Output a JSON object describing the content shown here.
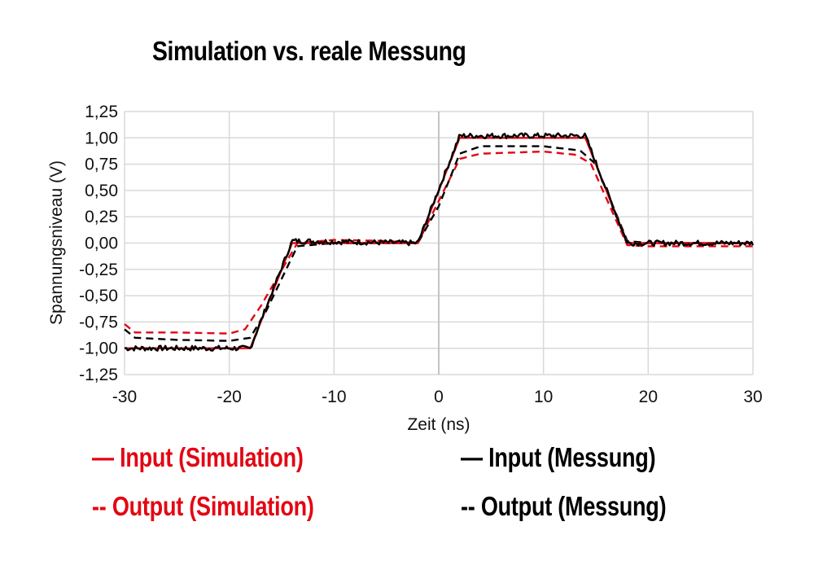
{
  "chart_data": {
    "type": "line",
    "title": "Simulation vs. reale Messung",
    "xlabel": "Zeit (ns)",
    "ylabel": "Spannungsniveau (V)",
    "xlim": [
      -30,
      30
    ],
    "ylim": [
      -1.25,
      1.25
    ],
    "x_ticks": [
      "-30",
      "-20",
      "-10",
      "0",
      "10",
      "20",
      "30"
    ],
    "y_ticks": [
      "1,25",
      "1,00",
      "0,75",
      "0,50",
      "0,25",
      "0,00",
      "-0,25",
      "-0,50",
      "-0,75",
      "-1,00",
      "-1,25"
    ],
    "grid": true,
    "legend_position": "bottom",
    "series": [
      {
        "name": "Input (Simulation)",
        "color": "#e30613",
        "style": "solid",
        "x": [
          -30,
          -18,
          -14,
          -2,
          2,
          14,
          18,
          30
        ],
        "y": [
          -1.0,
          -1.0,
          0.0,
          0.0,
          1.0,
          1.0,
          0.0,
          0.0
        ]
      },
      {
        "name": "Output (Simulation)",
        "color": "#e30613",
        "style": "dashed",
        "x": [
          -30,
          -29,
          -25,
          -20,
          -18.5,
          -17,
          -13.5,
          -10,
          -5,
          -2,
          0,
          2,
          4,
          10,
          13,
          14.5,
          18,
          20,
          25,
          30
        ],
        "y": [
          -0.77,
          -0.85,
          -0.85,
          -0.86,
          -0.82,
          -0.6,
          0.0,
          0.03,
          0.02,
          0.0,
          0.4,
          0.8,
          0.85,
          0.87,
          0.84,
          0.76,
          -0.02,
          -0.03,
          -0.03,
          -0.03
        ]
      },
      {
        "name": "Input (Messung)",
        "color": "#000000",
        "style": "solid",
        "x": [
          -30,
          -18,
          -14,
          -2,
          2,
          14,
          18,
          30
        ],
        "y": [
          -1.0,
          -1.0,
          0.02,
          0.0,
          1.02,
          1.02,
          0.0,
          0.0
        ]
      },
      {
        "name": "Output (Messung)",
        "color": "#000000",
        "style": "dashed",
        "x": [
          -30,
          -29,
          -25,
          -20,
          -18,
          -16.5,
          -13.5,
          -10,
          -5,
          -2,
          0,
          2,
          4,
          10,
          13.5,
          15,
          18,
          20,
          25,
          30
        ],
        "y": [
          -0.82,
          -0.9,
          -0.92,
          -0.93,
          -0.9,
          -0.65,
          -0.03,
          0.0,
          0.0,
          0.0,
          0.35,
          0.85,
          0.92,
          0.92,
          0.88,
          0.75,
          0.02,
          0.0,
          0.0,
          0.0
        ]
      }
    ]
  },
  "legend": [
    {
      "marker": "—",
      "label": "Input (Simulation)"
    },
    {
      "marker": "--",
      "label": "Output (Simulation)"
    },
    {
      "marker": "—",
      "label": "Input (Messung)"
    },
    {
      "marker": "--",
      "label": "Output (Messung)"
    }
  ]
}
